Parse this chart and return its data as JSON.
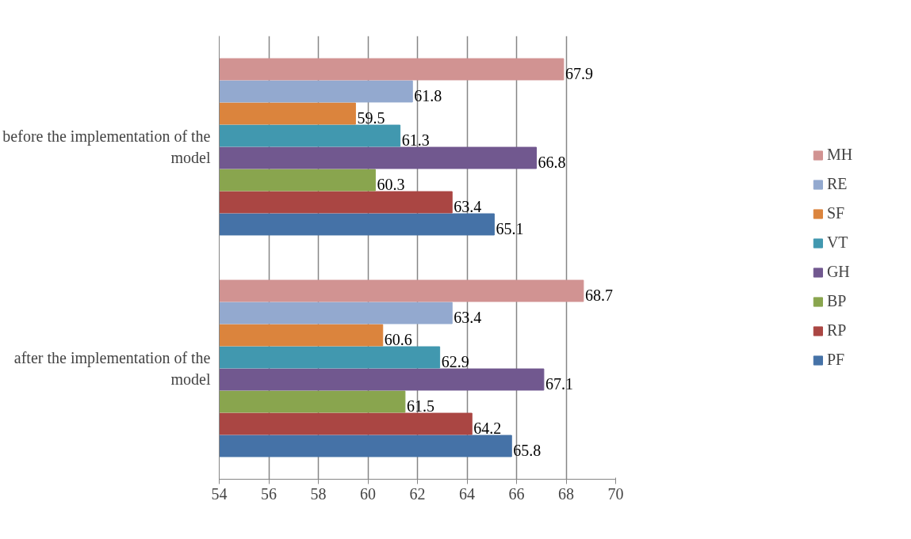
{
  "chart_data": {
    "type": "bar",
    "orientation": "horizontal",
    "categories": [
      "before the implementation of the model",
      "after the implementation of the model"
    ],
    "series": [
      {
        "name": "PF",
        "color": "#4572a7",
        "values": [
          65.1,
          65.8
        ]
      },
      {
        "name": "RP",
        "color": "#aa4643",
        "values": [
          63.4,
          64.2
        ]
      },
      {
        "name": "BP",
        "color": "#89a54e",
        "values": [
          60.3,
          61.5
        ]
      },
      {
        "name": "GH",
        "color": "#71588f",
        "values": [
          66.8,
          67.1
        ]
      },
      {
        "name": "VT",
        "color": "#4198af",
        "values": [
          61.3,
          62.9
        ]
      },
      {
        "name": "SF",
        "color": "#db843d",
        "values": [
          59.5,
          60.6
        ]
      },
      {
        "name": "RE",
        "color": "#93a9cf",
        "values": [
          61.8,
          63.4
        ]
      },
      {
        "name": "MH",
        "color": "#d19392",
        "values": [
          67.9,
          68.7
        ]
      }
    ],
    "xlim": [
      54,
      70
    ],
    "xticks": [
      54,
      56,
      58,
      60,
      62,
      64,
      66,
      68,
      70
    ],
    "grid": "x",
    "legend": "right",
    "data_labels": true
  }
}
